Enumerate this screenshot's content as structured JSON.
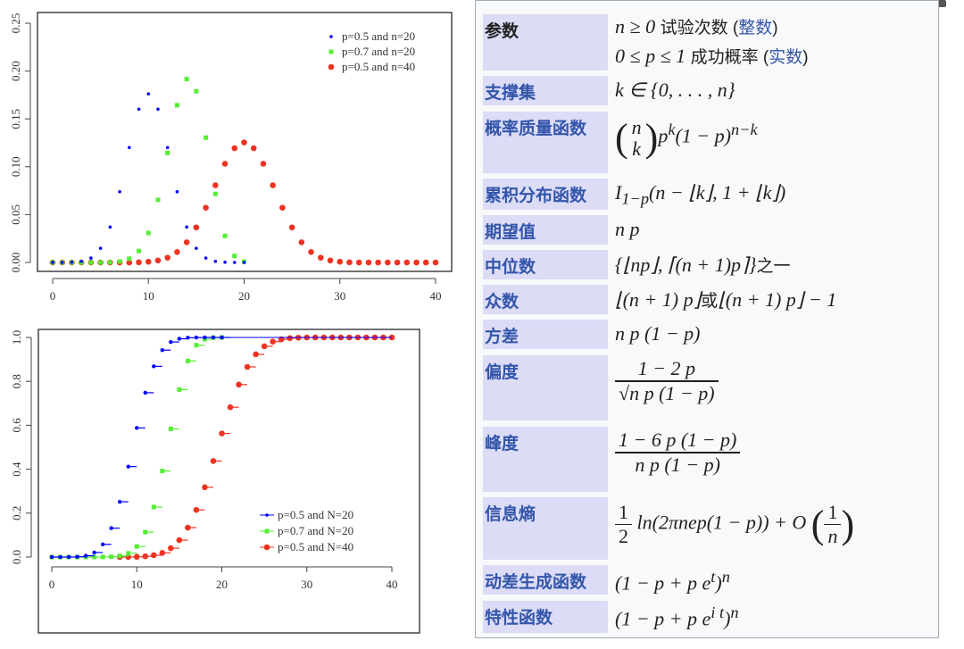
{
  "chart_data": [
    {
      "type": "scatter",
      "title": "",
      "xlabel": "",
      "ylabel": "",
      "xlim": [
        0,
        40
      ],
      "ylim": [
        0,
        0.25
      ],
      "xticks": [
        "0",
        "10",
        "20",
        "30",
        "40"
      ],
      "yticks": [
        "0.00",
        "0.05",
        "0.10",
        "0.15",
        "0.20",
        "0.25"
      ],
      "legend_position": "top-right",
      "grid": false,
      "series": [
        {
          "name": "p=0.5 and n=20",
          "color": "#0000ff",
          "marker": "dot",
          "x_start": 0,
          "values": [
            0,
            0,
            0.0002,
            0.0011,
            0.0046,
            0.0148,
            0.037,
            0.0739,
            0.1201,
            0.1602,
            0.1762,
            0.1602,
            0.1201,
            0.0739,
            0.037,
            0.0148,
            0.0046,
            0.0011,
            0.0002,
            0,
            0
          ]
        },
        {
          "name": "p=0.7 and n=20",
          "color": "#55ee33",
          "marker": "square",
          "x_start": 0,
          "values": [
            0,
            0,
            0,
            0,
            0,
            0,
            0.0002,
            0.001,
            0.0039,
            0.012,
            0.0308,
            0.0654,
            0.1144,
            0.1643,
            0.1916,
            0.1789,
            0.1304,
            0.0716,
            0.0278,
            0.0068,
            0.0008
          ]
        },
        {
          "name": "p=0.5 and n=40",
          "color": "#ee3322",
          "marker": "circle",
          "x_start": 0,
          "values": [
            0,
            0,
            0,
            0,
            0,
            0,
            0,
            0,
            0,
            0.0002,
            0.0008,
            0.0021,
            0.005,
            0.0109,
            0.0211,
            0.0366,
            0.0572,
            0.0807,
            0.1031,
            0.1194,
            0.1254,
            0.1194,
            0.1031,
            0.0807,
            0.0572,
            0.0366,
            0.0211,
            0.0109,
            0.005,
            0.0021,
            0.0008,
            0.0002,
            0,
            0,
            0,
            0,
            0,
            0,
            0,
            0,
            0
          ]
        }
      ]
    },
    {
      "type": "line",
      "title": "",
      "xlabel": "",
      "ylabel": "",
      "xlim": [
        0,
        40
      ],
      "ylim": [
        0,
        1
      ],
      "xticks": [
        "0",
        "10",
        "20",
        "30",
        "40"
      ],
      "yticks": [
        "0.0",
        "0.2",
        "0.4",
        "0.6",
        "0.8",
        "1.0"
      ],
      "legend_position": "bottom-right",
      "grid": false,
      "step": true,
      "series": [
        {
          "name": "p=0.5 and N=20",
          "color": "#0000ff",
          "x_start": 0,
          "values": [
            0,
            0,
            0.0002,
            0.0013,
            0.0059,
            0.0207,
            0.0577,
            0.1316,
            0.2517,
            0.4119,
            0.5881,
            0.7483,
            0.8684,
            0.9423,
            0.9793,
            0.9941,
            0.9987,
            0.9998,
            1,
            1,
            1
          ]
        },
        {
          "name": "p=0.7 and N=20",
          "color": "#55ee33",
          "x_start": 0,
          "values": [
            0,
            0,
            0,
            0,
            0,
            0,
            0.0003,
            0.0013,
            0.0051,
            0.0171,
            0.048,
            0.1133,
            0.2277,
            0.392,
            0.5836,
            0.7625,
            0.8929,
            0.9645,
            0.9924,
            0.9992,
            1
          ]
        },
        {
          "name": "p=0.5 and N=40",
          "color": "#ee3322",
          "x_start": 8,
          "values": [
            0.0001,
            0.0003,
            0.0011,
            0.0032,
            0.0083,
            0.0192,
            0.0403,
            0.0769,
            0.1341,
            0.2148,
            0.3179,
            0.4373,
            0.5627,
            0.6821,
            0.7852,
            0.8659,
            0.9231,
            0.9597,
            0.9808,
            0.9917,
            0.9968,
            0.9989,
            0.9997,
            1,
            1,
            1,
            1,
            1,
            1,
            1,
            1,
            1,
            1
          ]
        }
      ]
    }
  ],
  "infobox": {
    "rows": [
      {
        "label": "参数",
        "v1a": "n ≥ 0",
        "v1b": "试验次数 (",
        "v1link": "整数",
        "v1c": ")",
        "v2a": "0 ≤ p ≤ 1",
        "v2b": "成功概率 (",
        "v2link": "实数",
        "v2c": ")"
      },
      {
        "label": "支撑集",
        "value": "k ∈ {0, . . . , n}"
      },
      {
        "label": "概率质量函数",
        "top": "n",
        "bottom": "k",
        "rest": "p",
        "sup1": "k",
        "rest2": "(1 − p)",
        "sup2": "n−k"
      },
      {
        "label": "累积分布函数",
        "base": "I",
        "sub": "1−p",
        "rest": "(n − ⌊k⌋, 1 + ⌊k⌋)"
      },
      {
        "label": "期望值",
        "value": "n p"
      },
      {
        "label": "中位数",
        "value": "{⌊np⌋, ⌈(n + 1)p⌉}",
        "cn": "之一"
      },
      {
        "label": "众数",
        "a": "⌊(n + 1) p⌋",
        "cn": "或",
        "b": "⌊(n + 1) p⌋ − 1"
      },
      {
        "label": "方差",
        "value": "n p (1 − p)"
      },
      {
        "label": "偏度",
        "num": "1 − 2 p",
        "den": "√n p (1 − p)"
      },
      {
        "label": "峰度",
        "num": "1 − 6 p (1 − p)",
        "den": "n p (1 − p)"
      },
      {
        "label": "信息熵",
        "num": "1",
        "den": "2",
        "mid": "ln(2πnep(1 − p)) + O",
        "num2": "1",
        "den2": "n"
      },
      {
        "label": "动差生成函数",
        "base": "(1 − p + p e",
        "sup": "t",
        "close": ")",
        "sup2": "n"
      },
      {
        "label": "特性函数",
        "base": "(1 − p + p e",
        "sup": "i t",
        "close": ")",
        "sup2": "n"
      }
    ]
  }
}
